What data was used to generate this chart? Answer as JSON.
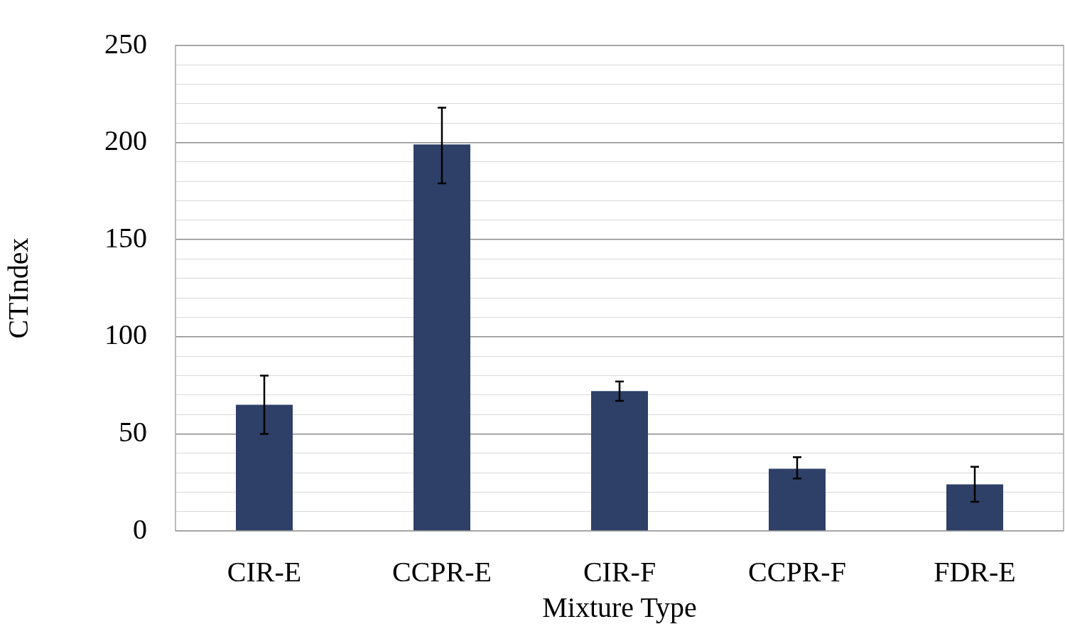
{
  "chart_data": {
    "type": "bar",
    "xlabel": "Mixture Type",
    "ylabel": "CTIndex",
    "categories": [
      "CIR-E",
      "CCPR-E",
      "CIR-F",
      "CCPR-F",
      "FDR-E"
    ],
    "values": [
      65,
      199,
      72,
      32,
      24
    ],
    "errors": [
      [
        50,
        80
      ],
      [
        179,
        218
      ],
      [
        67,
        77
      ],
      [
        27,
        38
      ],
      [
        15,
        33
      ]
    ],
    "color": "#2e4068",
    "ylim": [
      0,
      250
    ],
    "yticks": [
      0,
      {
        "value": 10,
        "label": null
      },
      {
        "value": 20,
        "label": null
      },
      {
        "value": 30,
        "label": null
      },
      {
        "value": 40,
        "label": null
      },
      50,
      {
        "value": 60,
        "label": null
      },
      {
        "value": 70,
        "label": null
      },
      {
        "value": 80,
        "label": null
      },
      {
        "value": 90,
        "label": null
      },
      100,
      {
        "value": 110,
        "label": null
      },
      {
        "value": 120,
        "label": null
      },
      {
        "value": 130,
        "label": null
      },
      {
        "value": 140,
        "label": null
      },
      150,
      {
        "value": 160,
        "label": null
      },
      {
        "value": 170,
        "label": null
      },
      {
        "value": 180,
        "label": null
      },
      {
        "value": 190,
        "label": null
      },
      200,
      {
        "value": 210,
        "label": null
      },
      {
        "value": 220,
        "label": null
      },
      {
        "value": 230,
        "label": null
      },
      {
        "value": 240,
        "label": null
      },
      250
    ],
    "grid": "y",
    "legend": false
  }
}
